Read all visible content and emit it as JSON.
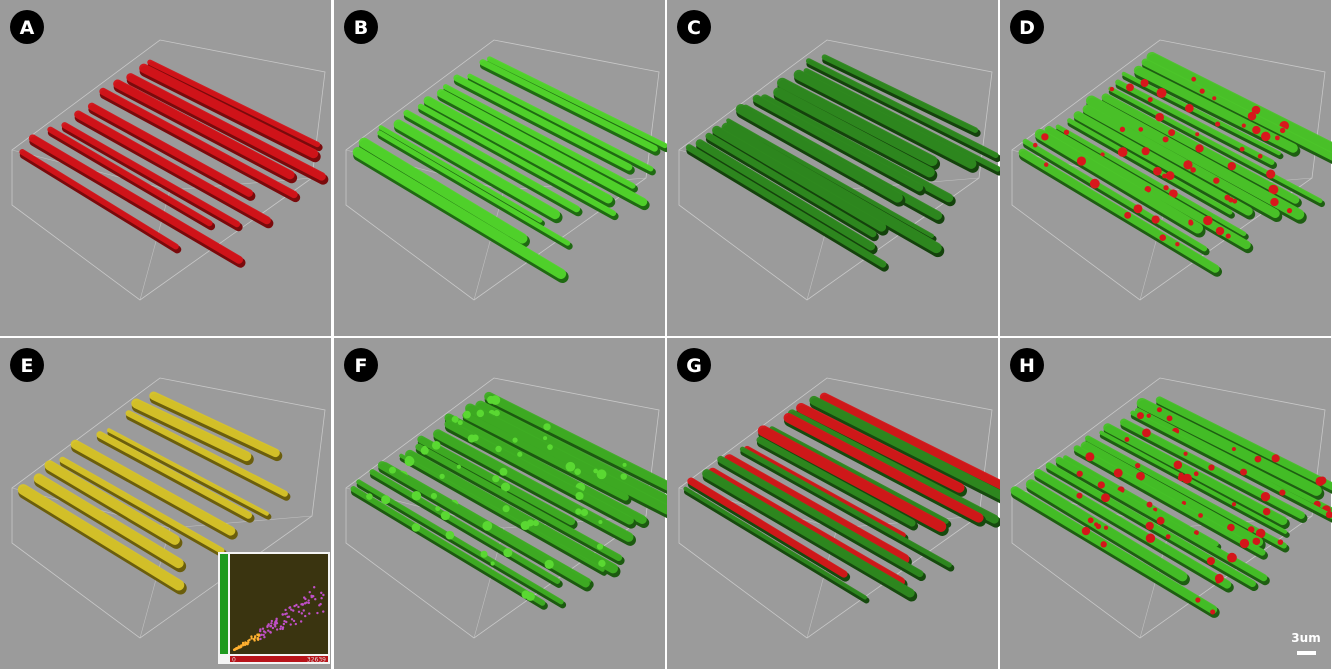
{
  "panels": [
    {
      "label": "A"
    },
    {
      "label": "B"
    },
    {
      "label": "C"
    },
    {
      "label": "D"
    },
    {
      "label": "E"
    },
    {
      "label": "F"
    },
    {
      "label": "G"
    },
    {
      "label": "H"
    }
  ],
  "inset": {
    "x_min": "0",
    "x_max": "32639"
  },
  "scale_bar": {
    "label": "3um"
  }
}
